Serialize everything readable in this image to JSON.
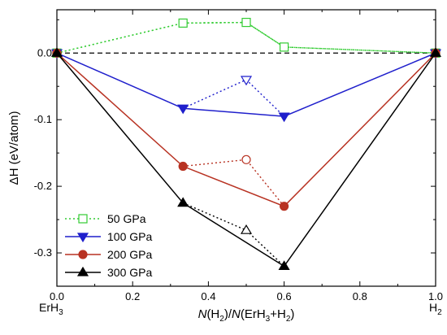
{
  "chart_data": {
    "type": "line",
    "xlabel_parts": [
      "N",
      "(H",
      "2",
      ")/",
      "N",
      "(ErH",
      "3",
      "+H",
      "2",
      ")"
    ],
    "ylabel": "ΔH (eV/atom)",
    "xlim": [
      0.0,
      1.0
    ],
    "ylim": [
      -0.35,
      0.065
    ],
    "xticks": [
      0.0,
      0.2,
      0.4,
      0.6,
      0.8,
      1.0
    ],
    "xtick_labels": [
      "0.0",
      "0.2",
      "0.4",
      "0.6",
      "0.8",
      "1.0"
    ],
    "yticks": [
      0.0,
      -0.1,
      -0.2,
      -0.3
    ],
    "ytick_labels": [
      "0.0",
      "-0.1",
      "-0.2",
      "-0.3"
    ],
    "end_labels": {
      "left": {
        "base": "ErH",
        "sub": "3"
      },
      "right": {
        "base": "H",
        "sub": "2"
      }
    },
    "reference_line_y": 0.0,
    "legend_position": "bottom-left",
    "series": [
      {
        "name": "50 GPa",
        "color": "#33cc33",
        "marker": "square",
        "hull": [
          [
            0.0,
            0.0
          ],
          [
            1.0,
            0.0
          ]
        ],
        "points": [
          [
            0.0,
            0.0
          ],
          [
            0.333,
            0.045
          ],
          [
            0.5,
            0.046
          ],
          [
            0.6,
            0.009
          ],
          [
            1.0,
            0.0
          ]
        ],
        "filled": [
          true,
          false,
          false,
          false,
          true
        ]
      },
      {
        "name": "100 GPa",
        "color": "#1f1fcc",
        "marker": "triangle-down",
        "hull": [
          [
            0.0,
            0.0
          ],
          [
            0.333,
            -0.083
          ],
          [
            0.6,
            -0.095
          ],
          [
            1.0,
            0.0
          ]
        ],
        "points": [
          [
            0.0,
            0.0
          ],
          [
            0.333,
            -0.083
          ],
          [
            0.5,
            -0.04
          ],
          [
            0.6,
            -0.095
          ],
          [
            1.0,
            0.0
          ]
        ],
        "filled": [
          true,
          true,
          false,
          true,
          true
        ]
      },
      {
        "name": "200 GPa",
        "color": "#b83222",
        "marker": "circle",
        "hull": [
          [
            0.0,
            0.0
          ],
          [
            0.333,
            -0.17
          ],
          [
            0.6,
            -0.23
          ],
          [
            1.0,
            0.0
          ]
        ],
        "points": [
          [
            0.0,
            0.0
          ],
          [
            0.333,
            -0.17
          ],
          [
            0.5,
            -0.16
          ],
          [
            0.6,
            -0.23
          ],
          [
            1.0,
            0.0
          ]
        ],
        "filled": [
          true,
          true,
          false,
          true,
          true
        ]
      },
      {
        "name": "300 GPa",
        "color": "#000000",
        "marker": "triangle-up",
        "hull": [
          [
            0.0,
            0.0
          ],
          [
            0.333,
            -0.225
          ],
          [
            0.6,
            -0.32
          ],
          [
            1.0,
            0.0
          ]
        ],
        "points": [
          [
            0.0,
            0.0
          ],
          [
            0.333,
            -0.225
          ],
          [
            0.5,
            -0.266
          ],
          [
            0.6,
            -0.32
          ],
          [
            1.0,
            0.0
          ]
        ],
        "filled": [
          true,
          true,
          false,
          true,
          true
        ]
      }
    ]
  }
}
